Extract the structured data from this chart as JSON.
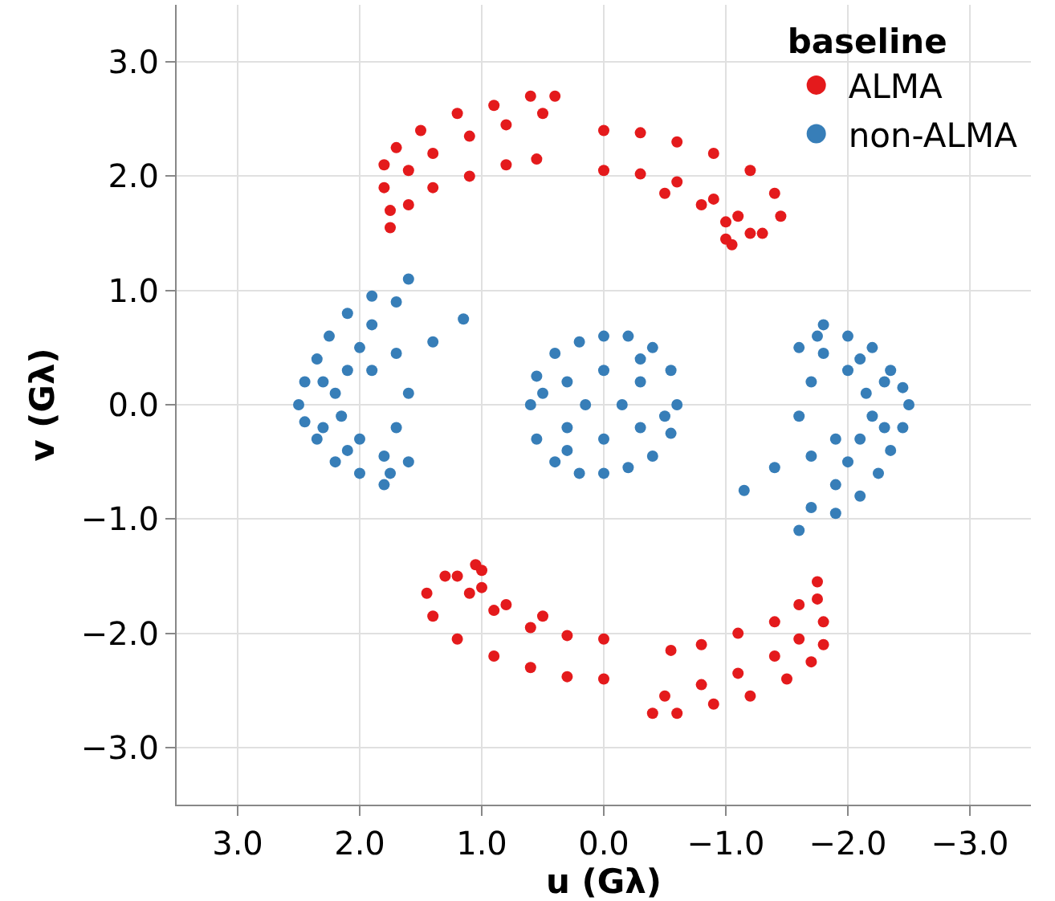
{
  "chart_data": {
    "type": "scatter",
    "xlabel": "u (Gλ)",
    "ylabel": "v (Gλ)",
    "legend_title": "baseline",
    "xlim": [
      3.5,
      -3.5
    ],
    "ylim": [
      -3.5,
      3.5
    ],
    "xticks": [
      {
        "value": 3,
        "label": "3.0"
      },
      {
        "value": 2,
        "label": "2.0"
      },
      {
        "value": 1,
        "label": "1.0"
      },
      {
        "value": 0,
        "label": "0.0"
      },
      {
        "value": -1,
        "label": "−1.0"
      },
      {
        "value": -2,
        "label": "−2.0"
      },
      {
        "value": -3,
        "label": "−3.0"
      }
    ],
    "yticks": [
      {
        "value": -3,
        "label": "−3.0"
      },
      {
        "value": -2,
        "label": "−2.0"
      },
      {
        "value": -1,
        "label": "−1.0"
      },
      {
        "value": 0,
        "label": "0.0"
      },
      {
        "value": 1,
        "label": "1.0"
      },
      {
        "value": 2,
        "label": "2.0"
      },
      {
        "value": 3,
        "label": "3.0"
      }
    ],
    "grid": true,
    "legend": "top right",
    "marker": "circle",
    "series": [
      {
        "name": "ALMA",
        "color": "#e41a1c",
        "x": [
          1.8,
          1.7,
          1.5,
          1.2,
          0.9,
          0.6,
          0.4,
          1.8,
          1.6,
          1.4,
          1.1,
          0.8,
          0.5,
          1.75,
          1.75,
          1.6,
          1.4,
          1.1,
          0.8,
          0.55,
          0.0,
          -0.3,
          -0.6,
          -0.9,
          -1.2,
          -1.4,
          -1.45,
          -1.3,
          0.0,
          -0.3,
          -0.6,
          -0.9,
          -1.1,
          -1.2,
          -1.05,
          -0.5,
          -0.8,
          -1.0,
          -1.0,
          -1.8,
          -1.7,
          -1.5,
          -1.2,
          -0.9,
          -0.6,
          -0.4,
          -1.8,
          -1.6,
          -1.4,
          -1.1,
          -0.8,
          -0.5,
          -1.75,
          -1.75,
          -1.6,
          -1.4,
          -1.1,
          -0.8,
          -0.55,
          0.0,
          0.3,
          0.6,
          0.9,
          1.2,
          1.4,
          1.45,
          1.3,
          0.0,
          0.3,
          0.6,
          0.9,
          1.1,
          1.2,
          1.05,
          0.5,
          0.8,
          1.0,
          1.0
        ],
        "values": [
          2.1,
          2.25,
          2.4,
          2.55,
          2.62,
          2.7,
          2.7,
          1.9,
          2.05,
          2.2,
          2.35,
          2.45,
          2.55,
          1.55,
          1.7,
          1.75,
          1.9,
          2.0,
          2.1,
          2.15,
          2.4,
          2.38,
          2.3,
          2.2,
          2.05,
          1.85,
          1.65,
          1.5,
          2.05,
          2.02,
          1.95,
          1.8,
          1.65,
          1.5,
          1.4,
          1.85,
          1.75,
          1.6,
          1.45,
          -2.1,
          -2.25,
          -2.4,
          -2.55,
          -2.62,
          -2.7,
          -2.7,
          -1.9,
          -2.05,
          -2.2,
          -2.35,
          -2.45,
          -2.55,
          -1.55,
          -1.7,
          -1.75,
          -1.9,
          -2.0,
          -2.1,
          -2.15,
          -2.4,
          -2.38,
          -2.3,
          -2.2,
          -2.05,
          -1.85,
          -1.65,
          -1.5,
          -2.05,
          -2.02,
          -1.95,
          -1.8,
          -1.65,
          -1.5,
          -1.4,
          -1.85,
          -1.75,
          -1.6,
          -1.45
        ]
      },
      {
        "name": "non-ALMA",
        "color": "#377eb8",
        "x": [
          1.6,
          1.9,
          2.1,
          2.25,
          2.35,
          2.45,
          2.5,
          2.45,
          2.35,
          2.2,
          2.0,
          1.8,
          1.7,
          1.9,
          2.0,
          2.1,
          2.2,
          2.15,
          2.0,
          1.8,
          1.6,
          1.15,
          1.4,
          1.7,
          1.6,
          1.7,
          1.9,
          2.3,
          2.3,
          1.75,
          2.1,
          0.6,
          0.55,
          0.4,
          0.2,
          0.0,
          -0.2,
          -0.4,
          -0.55,
          -0.6,
          -0.55,
          -0.4,
          -0.2,
          0.0,
          0.2,
          0.4,
          0.55,
          0.3,
          0.0,
          -0.3,
          -0.3,
          0.0,
          0.3,
          0.15,
          -0.15,
          0.5,
          -0.5,
          0.3,
          -0.3,
          -1.6,
          -1.9,
          -2.1,
          -2.25,
          -2.35,
          -2.45,
          -2.5,
          -2.45,
          -2.35,
          -2.2,
          -2.0,
          -1.8,
          -1.7,
          -1.9,
          -2.0,
          -2.1,
          -2.2,
          -2.15,
          -2.0,
          -1.8,
          -1.6,
          -1.15,
          -1.4,
          -1.7,
          -1.6,
          -1.7,
          -1.9,
          -2.3,
          -2.3,
          -1.75,
          -2.1
        ],
        "values": [
          1.1,
          0.95,
          0.8,
          0.6,
          0.4,
          0.2,
          0.0,
          -0.15,
          -0.3,
          -0.5,
          -0.6,
          -0.7,
          0.9,
          0.7,
          0.5,
          0.3,
          0.1,
          -0.1,
          -0.3,
          -0.45,
          -0.5,
          0.75,
          0.55,
          0.45,
          0.1,
          -0.2,
          0.3,
          0.2,
          -0.2,
          -0.6,
          -0.4,
          0.0,
          0.25,
          0.45,
          0.55,
          0.6,
          0.6,
          0.5,
          0.3,
          0.0,
          -0.25,
          -0.45,
          -0.55,
          -0.6,
          -0.6,
          -0.5,
          -0.3,
          0.2,
          0.3,
          0.2,
          -0.2,
          -0.3,
          -0.2,
          0.0,
          0.0,
          0.1,
          -0.1,
          -0.4,
          0.4,
          -1.1,
          -0.95,
          -0.8,
          -0.6,
          -0.4,
          -0.2,
          0.0,
          0.15,
          0.3,
          0.5,
          0.6,
          0.7,
          -0.9,
          -0.7,
          -0.5,
          -0.3,
          -0.1,
          0.1,
          0.3,
          0.45,
          0.5,
          -0.75,
          -0.55,
          -0.45,
          -0.1,
          0.2,
          -0.3,
          -0.2,
          0.2,
          0.6,
          0.4
        ]
      }
    ]
  }
}
